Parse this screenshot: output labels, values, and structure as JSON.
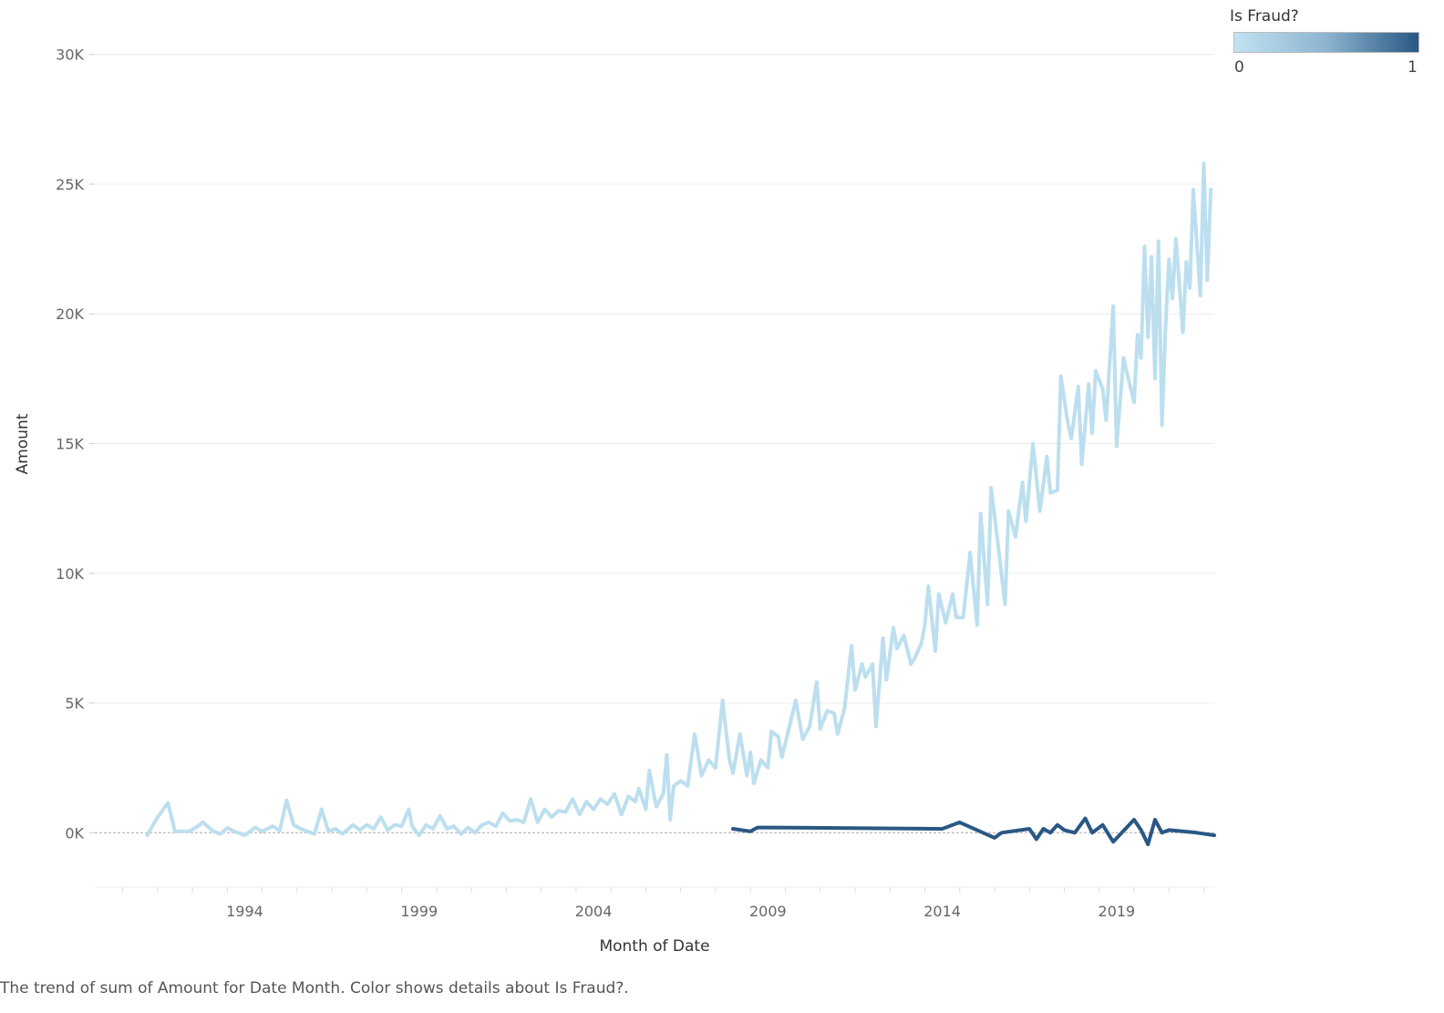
{
  "chart_data": {
    "type": "line",
    "xlabel": "Month of Date",
    "ylabel": "Amount",
    "x_ticks": [
      "1994",
      "1999",
      "2004",
      "2009",
      "2014",
      "2019"
    ],
    "x_range": [
      1990.2,
      2022.3
    ],
    "y_ticks": [
      "0K",
      "5K",
      "10K",
      "15K",
      "20K",
      "25K",
      "30K"
    ],
    "ylim": [
      -2100,
      32100
    ],
    "grid": true,
    "zero_line": true,
    "legend": {
      "title": "Is Fraud?",
      "min_label": "0",
      "max_label": "1",
      "placement": "top-right",
      "type": "continuous-color"
    },
    "color_scale": [
      "#c2e2f2",
      "#2a5783"
    ],
    "series": [
      {
        "color_value": 0,
        "color": "#bcdfef",
        "points": [
          [
            1991.7,
            -100
          ],
          [
            1992.0,
            600
          ],
          [
            1992.3,
            1150
          ],
          [
            1992.5,
            50
          ],
          [
            1992.9,
            50
          ],
          [
            1993.1,
            200
          ],
          [
            1993.3,
            400
          ],
          [
            1993.6,
            50
          ],
          [
            1993.8,
            -50
          ],
          [
            1994.0,
            180
          ],
          [
            1994.2,
            50
          ],
          [
            1994.5,
            -100
          ],
          [
            1994.8,
            200
          ],
          [
            1995.0,
            50
          ],
          [
            1995.3,
            250
          ],
          [
            1995.5,
            80
          ],
          [
            1995.7,
            1250
          ],
          [
            1995.9,
            300
          ],
          [
            1996.1,
            150
          ],
          [
            1996.3,
            50
          ],
          [
            1996.5,
            -50
          ],
          [
            1996.7,
            900
          ],
          [
            1996.9,
            50
          ],
          [
            1997.1,
            150
          ],
          [
            1997.3,
            -50
          ],
          [
            1997.6,
            300
          ],
          [
            1997.8,
            100
          ],
          [
            1998.0,
            300
          ],
          [
            1998.2,
            150
          ],
          [
            1998.4,
            600
          ],
          [
            1998.6,
            100
          ],
          [
            1998.8,
            300
          ],
          [
            1999.0,
            250
          ],
          [
            1999.2,
            900
          ],
          [
            1999.3,
            250
          ],
          [
            1999.5,
            -100
          ],
          [
            1999.7,
            300
          ],
          [
            1999.9,
            150
          ],
          [
            2000.1,
            650
          ],
          [
            2000.3,
            150
          ],
          [
            2000.5,
            250
          ],
          [
            2000.7,
            -50
          ],
          [
            2000.9,
            200
          ],
          [
            2001.1,
            0
          ],
          [
            2001.3,
            300
          ],
          [
            2001.5,
            400
          ],
          [
            2001.7,
            250
          ],
          [
            2001.9,
            750
          ],
          [
            2002.1,
            450
          ],
          [
            2002.3,
            500
          ],
          [
            2002.5,
            400
          ],
          [
            2002.7,
            1300
          ],
          [
            2002.9,
            400
          ],
          [
            2003.1,
            900
          ],
          [
            2003.3,
            600
          ],
          [
            2003.5,
            850
          ],
          [
            2003.7,
            800
          ],
          [
            2003.9,
            1300
          ],
          [
            2004.1,
            700
          ],
          [
            2004.3,
            1200
          ],
          [
            2004.5,
            900
          ],
          [
            2004.7,
            1300
          ],
          [
            2004.9,
            1100
          ],
          [
            2005.1,
            1500
          ],
          [
            2005.3,
            700
          ],
          [
            2005.5,
            1400
          ],
          [
            2005.7,
            1200
          ],
          [
            2005.8,
            1700
          ],
          [
            2006.0,
            900
          ],
          [
            2006.1,
            2400
          ],
          [
            2006.3,
            1000
          ],
          [
            2006.5,
            1500
          ],
          [
            2006.6,
            3000
          ],
          [
            2006.7,
            500
          ],
          [
            2006.8,
            1800
          ],
          [
            2007.0,
            2000
          ],
          [
            2007.2,
            1800
          ],
          [
            2007.4,
            3800
          ],
          [
            2007.6,
            2200
          ],
          [
            2007.8,
            2800
          ],
          [
            2008.0,
            2500
          ],
          [
            2008.2,
            5100
          ],
          [
            2008.4,
            2800
          ],
          [
            2008.5,
            2300
          ],
          [
            2008.7,
            3800
          ],
          [
            2008.9,
            2200
          ],
          [
            2009.0,
            3100
          ],
          [
            2009.1,
            1900
          ],
          [
            2009.3,
            2800
          ],
          [
            2009.5,
            2500
          ],
          [
            2009.6,
            3900
          ],
          [
            2009.8,
            3700
          ],
          [
            2009.9,
            2900
          ],
          [
            2010.1,
            4000
          ],
          [
            2010.3,
            5100
          ],
          [
            2010.5,
            3600
          ],
          [
            2010.7,
            4100
          ],
          [
            2010.9,
            5800
          ],
          [
            2011.0,
            4000
          ],
          [
            2011.2,
            4700
          ],
          [
            2011.4,
            4600
          ],
          [
            2011.5,
            3800
          ],
          [
            2011.7,
            4800
          ],
          [
            2011.9,
            7200
          ],
          [
            2012.0,
            5500
          ],
          [
            2012.2,
            6500
          ],
          [
            2012.3,
            6000
          ],
          [
            2012.5,
            6500
          ],
          [
            2012.6,
            4100
          ],
          [
            2012.8,
            7500
          ],
          [
            2012.9,
            5900
          ],
          [
            2013.1,
            7900
          ],
          [
            2013.2,
            7100
          ],
          [
            2013.4,
            7600
          ],
          [
            2013.6,
            6500
          ],
          [
            2013.7,
            6700
          ],
          [
            2013.9,
            7300
          ],
          [
            2014.0,
            8000
          ],
          [
            2014.1,
            9500
          ],
          [
            2014.3,
            7000
          ],
          [
            2014.4,
            9200
          ],
          [
            2014.6,
            8100
          ],
          [
            2014.8,
            9200
          ],
          [
            2014.9,
            8300
          ],
          [
            2015.1,
            8300
          ],
          [
            2015.3,
            10800
          ],
          [
            2015.5,
            8000
          ],
          [
            2015.6,
            12300
          ],
          [
            2015.8,
            8800
          ],
          [
            2015.9,
            13300
          ],
          [
            2016.1,
            11100
          ],
          [
            2016.3,
            8800
          ],
          [
            2016.4,
            12400
          ],
          [
            2016.6,
            11400
          ],
          [
            2016.8,
            13500
          ],
          [
            2016.9,
            12000
          ],
          [
            2017.1,
            15000
          ],
          [
            2017.3,
            12400
          ],
          [
            2017.5,
            14500
          ],
          [
            2017.6,
            13100
          ],
          [
            2017.8,
            13200
          ],
          [
            2017.9,
            17600
          ],
          [
            2018.1,
            15800
          ],
          [
            2018.2,
            15200
          ],
          [
            2018.4,
            17200
          ],
          [
            2018.5,
            14200
          ],
          [
            2018.7,
            17300
          ],
          [
            2018.8,
            15400
          ],
          [
            2018.9,
            17800
          ],
          [
            2019.1,
            17100
          ],
          [
            2019.2,
            15900
          ],
          [
            2019.4,
            20300
          ],
          [
            2019.5,
            14900
          ],
          [
            2019.7,
            18300
          ],
          [
            2019.8,
            17700
          ],
          [
            2020.0,
            16600
          ],
          [
            2020.1,
            19200
          ],
          [
            2020.2,
            18300
          ],
          [
            2020.3,
            22600
          ],
          [
            2020.4,
            19100
          ],
          [
            2020.5,
            22200
          ],
          [
            2020.6,
            17500
          ],
          [
            2020.7,
            22800
          ],
          [
            2020.8,
            15700
          ],
          [
            2020.9,
            19400
          ],
          [
            2021.0,
            22100
          ],
          [
            2021.1,
            20600
          ],
          [
            2021.2,
            22900
          ],
          [
            2021.4,
            19300
          ],
          [
            2021.5,
            22000
          ],
          [
            2021.6,
            21000
          ],
          [
            2021.7,
            24800
          ],
          [
            2021.9,
            20700
          ],
          [
            2022.0,
            25800
          ],
          [
            2022.1,
            21300
          ],
          [
            2022.2,
            24800
          ]
        ]
      },
      {
        "color_value": 1,
        "color": "#2a5783",
        "points": [
          [
            2008.5,
            150
          ],
          [
            2009.0,
            50
          ],
          [
            2009.2,
            200
          ],
          [
            2009.6,
            200
          ],
          [
            2014.5,
            150
          ],
          [
            2015.0,
            400
          ],
          [
            2016.0,
            -200
          ],
          [
            2016.2,
            0
          ],
          [
            2017.0,
            150
          ],
          [
            2017.2,
            -250
          ],
          [
            2017.4,
            150
          ],
          [
            2017.6,
            0
          ],
          [
            2017.8,
            300
          ],
          [
            2018.0,
            100
          ],
          [
            2018.3,
            0
          ],
          [
            2018.6,
            550
          ],
          [
            2018.8,
            0
          ],
          [
            2019.1,
            300
          ],
          [
            2019.4,
            -350
          ],
          [
            2020.0,
            500
          ],
          [
            2020.2,
            100
          ],
          [
            2020.4,
            -450
          ],
          [
            2020.6,
            500
          ],
          [
            2020.8,
            0
          ],
          [
            2021.0,
            100
          ],
          [
            2021.4,
            50
          ],
          [
            2021.8,
            0
          ],
          [
            2022.3,
            -100
          ]
        ]
      }
    ]
  },
  "legend": {
    "title": "Is Fraud?",
    "min": "0",
    "max": "1"
  },
  "caption": "The trend of sum of Amount for Date Month.  Color shows details about Is Fraud?."
}
